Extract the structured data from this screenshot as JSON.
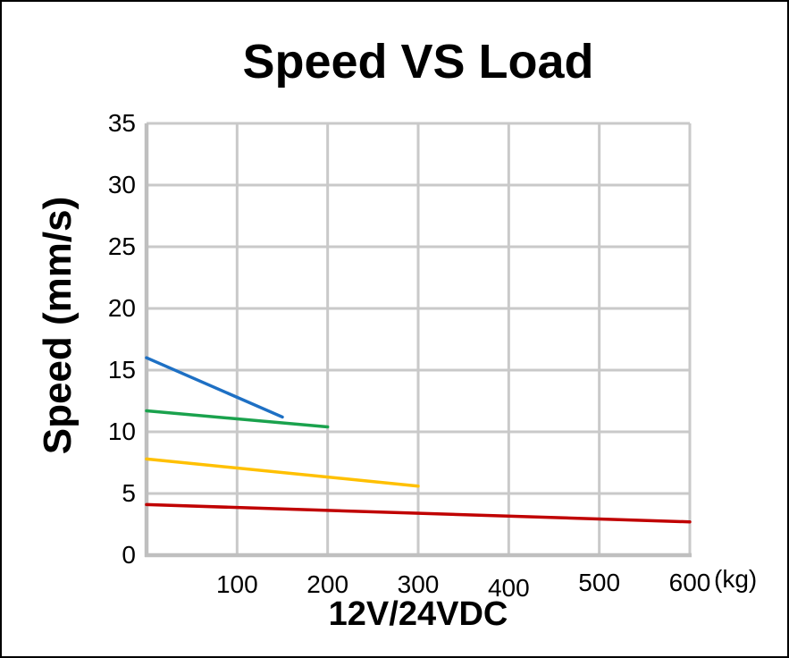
{
  "window": {
    "background": "#FFFFFF",
    "border_color": "#000000"
  },
  "chart_data": {
    "type": "line",
    "title": "Speed VS Load",
    "xlabel": "12V/24VDC",
    "ylabel": "Speed (mm/s)",
    "x_unit_label": "(kg)",
    "xlim": [
      0,
      600
    ],
    "ylim": [
      0,
      35
    ],
    "x_ticks": [
      100,
      200,
      300,
      400,
      500,
      600
    ],
    "y_ticks": [
      0,
      5,
      10,
      15,
      20,
      25,
      30,
      35
    ],
    "grid": true,
    "legend_position": "none",
    "grid_color": "#C9C9C9",
    "axis_color": "#BFBFBF",
    "series": [
      {
        "name": "curve-1-blue",
        "color": "#1E70C4",
        "points": [
          [
            0,
            16.0
          ],
          [
            150,
            11.2
          ]
        ]
      },
      {
        "name": "curve-2-green",
        "color": "#1AA24D",
        "points": [
          [
            0,
            11.7
          ],
          [
            200,
            10.4
          ]
        ]
      },
      {
        "name": "curve-3-yellow",
        "color": "#FFC000",
        "points": [
          [
            0,
            7.8
          ],
          [
            300,
            5.6
          ]
        ]
      },
      {
        "name": "curve-4-red",
        "color": "#C00000",
        "points": [
          [
            0,
            4.1
          ],
          [
            600,
            2.7
          ]
        ]
      }
    ]
  }
}
